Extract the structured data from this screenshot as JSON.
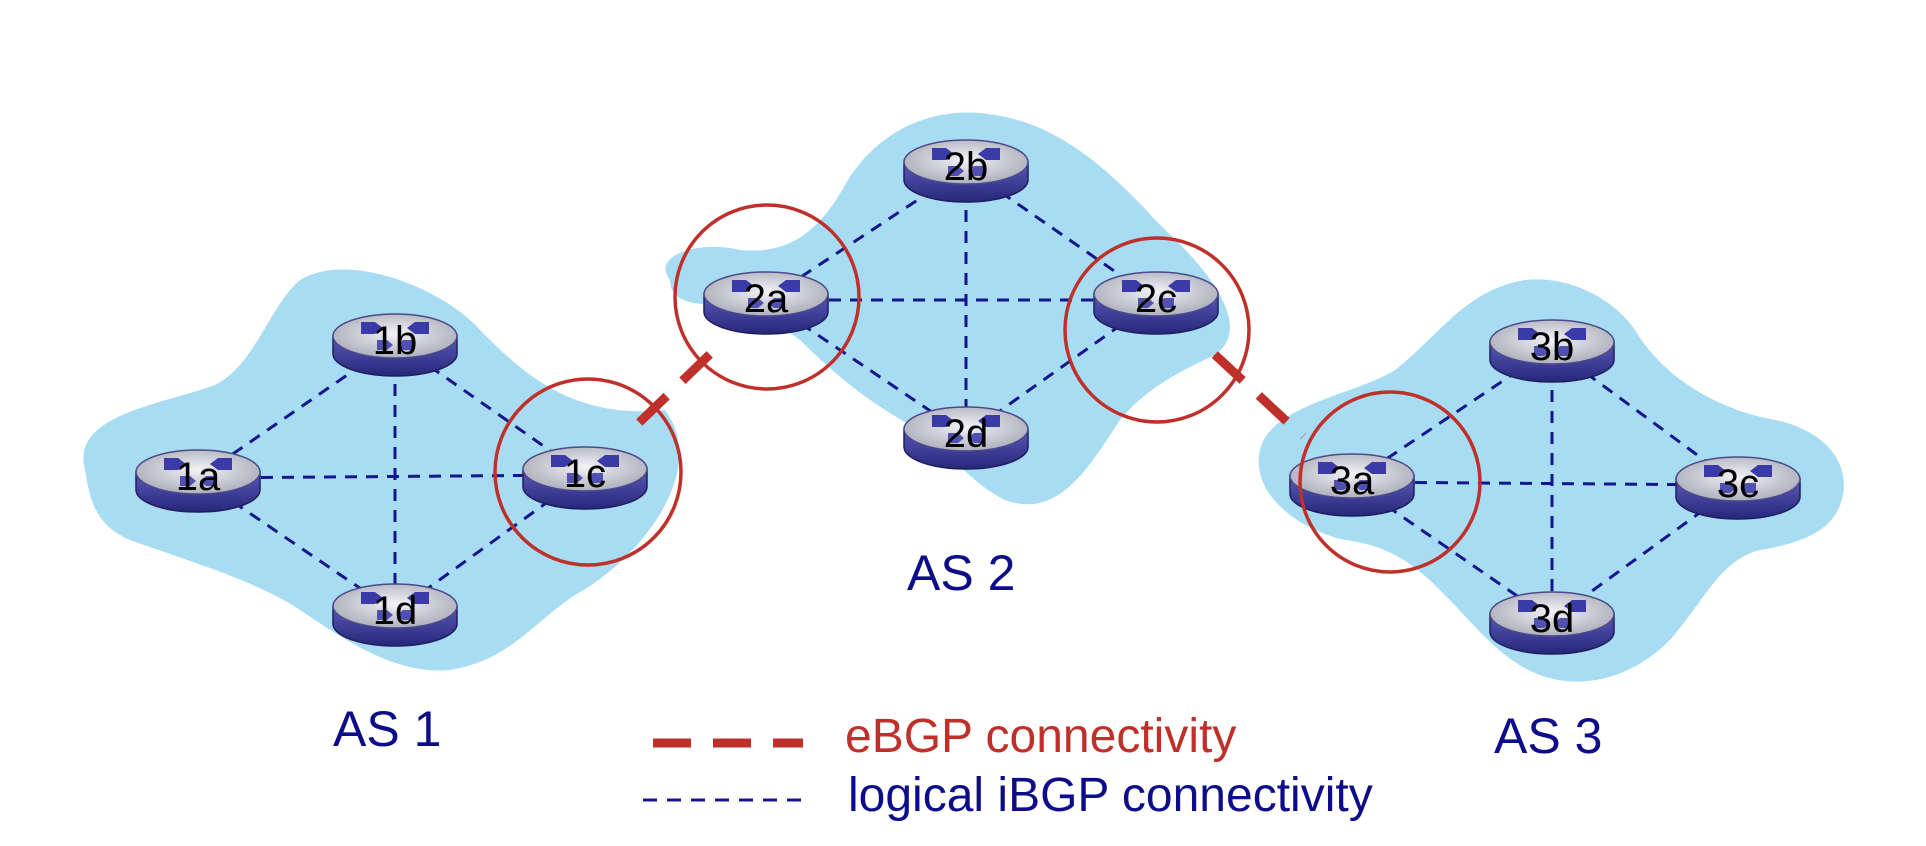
{
  "colors": {
    "cloud": "#a8dcf2",
    "ibgp": "#14148f",
    "ebgp": "#c0302a",
    "as_label": "#0d0d8a",
    "router_body": "#3c3c9e",
    "router_top": "#d6d6dc"
  },
  "autonomous_systems": [
    {
      "id": "as1",
      "label": "AS 1"
    },
    {
      "id": "as2",
      "label": "AS 2"
    },
    {
      "id": "as3",
      "label": "AS 3"
    }
  ],
  "routers": [
    {
      "id": "1a",
      "label": "1a"
    },
    {
      "id": "1b",
      "label": "1b"
    },
    {
      "id": "1c",
      "label": "1c"
    },
    {
      "id": "1d",
      "label": "1d"
    },
    {
      "id": "2a",
      "label": "2a"
    },
    {
      "id": "2b",
      "label": "2b"
    },
    {
      "id": "2c",
      "label": "2c"
    },
    {
      "id": "2d",
      "label": "2d"
    },
    {
      "id": "3a",
      "label": "3a"
    },
    {
      "id": "3b",
      "label": "3b"
    },
    {
      "id": "3c",
      "label": "3c"
    },
    {
      "id": "3d",
      "label": "3d"
    }
  ],
  "ibgp_links": [
    [
      "1a",
      "1b"
    ],
    [
      "1a",
      "1c"
    ],
    [
      "1a",
      "1d"
    ],
    [
      "1b",
      "1c"
    ],
    [
      "1b",
      "1d"
    ],
    [
      "1c",
      "1d"
    ],
    [
      "2a",
      "2b"
    ],
    [
      "2a",
      "2c"
    ],
    [
      "2a",
      "2d"
    ],
    [
      "2b",
      "2c"
    ],
    [
      "2b",
      "2d"
    ],
    [
      "2c",
      "2d"
    ],
    [
      "3a",
      "3b"
    ],
    [
      "3a",
      "3c"
    ],
    [
      "3a",
      "3d"
    ],
    [
      "3b",
      "3c"
    ],
    [
      "3b",
      "3d"
    ],
    [
      "3c",
      "3d"
    ]
  ],
  "ebgp_links": [
    [
      "1c",
      "2a"
    ],
    [
      "2c",
      "3a"
    ]
  ],
  "gateway_routers": [
    "1c",
    "2a",
    "2c",
    "3a"
  ],
  "legend": {
    "ebgp_label": "eBGP connectivity",
    "ibgp_label": "logical iBGP connectivity"
  }
}
